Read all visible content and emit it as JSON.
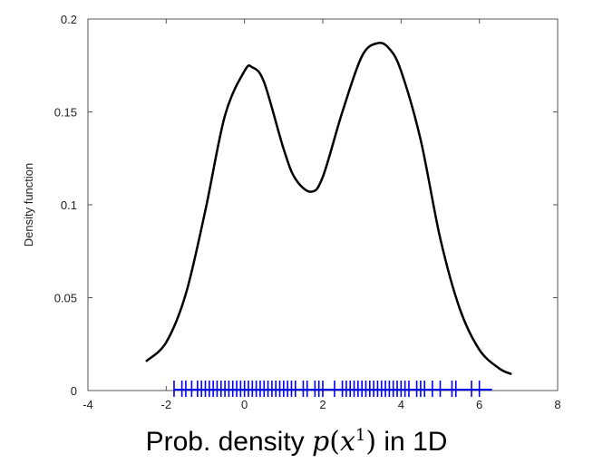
{
  "chart_data": {
    "type": "line",
    "ylabel": "Density function",
    "xlim": [
      -4,
      8
    ],
    "ylim": [
      0,
      0.2
    ],
    "x_ticks": [
      "-4",
      "-2",
      "0",
      "2",
      "4",
      "6",
      "8"
    ],
    "y_ticks": [
      "0",
      "0.05",
      "0.1",
      "0.15",
      "0.2"
    ],
    "grid": false,
    "series": [
      {
        "x": [
          -2.5,
          -2.0,
          -1.5,
          -1.0,
          -0.5,
          0.0,
          0.2,
          0.5,
          1.0,
          1.3,
          1.7,
          2.0,
          2.5,
          3.0,
          3.4,
          3.7,
          4.0,
          4.5,
          5.0,
          5.5,
          6.0,
          6.5,
          6.8
        ],
        "y": [
          0.016,
          0.026,
          0.052,
          0.097,
          0.148,
          0.172,
          0.174,
          0.166,
          0.13,
          0.114,
          0.107,
          0.115,
          0.15,
          0.18,
          0.187,
          0.184,
          0.172,
          0.135,
          0.082,
          0.044,
          0.022,
          0.012,
          0.009
        ],
        "color": "#000000"
      }
    ],
    "rug": {
      "color": "#0000ff",
      "x": [
        -1.8,
        -1.6,
        -1.5,
        -1.35,
        -1.2,
        -1.1,
        -1.0,
        -0.9,
        -0.8,
        -0.7,
        -0.6,
        -0.5,
        -0.4,
        -0.3,
        -0.2,
        -0.1,
        0.0,
        0.1,
        0.2,
        0.3,
        0.4,
        0.5,
        0.6,
        0.7,
        0.8,
        0.9,
        1.0,
        1.1,
        1.2,
        1.3,
        1.5,
        1.6,
        1.8,
        1.9,
        2.0,
        2.3,
        2.5,
        2.6,
        2.7,
        2.8,
        2.9,
        3.0,
        3.1,
        3.2,
        3.3,
        3.4,
        3.5,
        3.6,
        3.7,
        3.8,
        3.9,
        4.0,
        4.1,
        4.2,
        4.4,
        4.5,
        4.6,
        4.8,
        5.0,
        5.3,
        5.4,
        5.8,
        6.0
      ]
    }
  },
  "caption": {
    "prefix": "Prob. density ",
    "math_fn": "p",
    "math_open": "(",
    "math_var": "x",
    "math_sup": "1",
    "math_close": ")",
    "suffix": " in 1D"
  }
}
